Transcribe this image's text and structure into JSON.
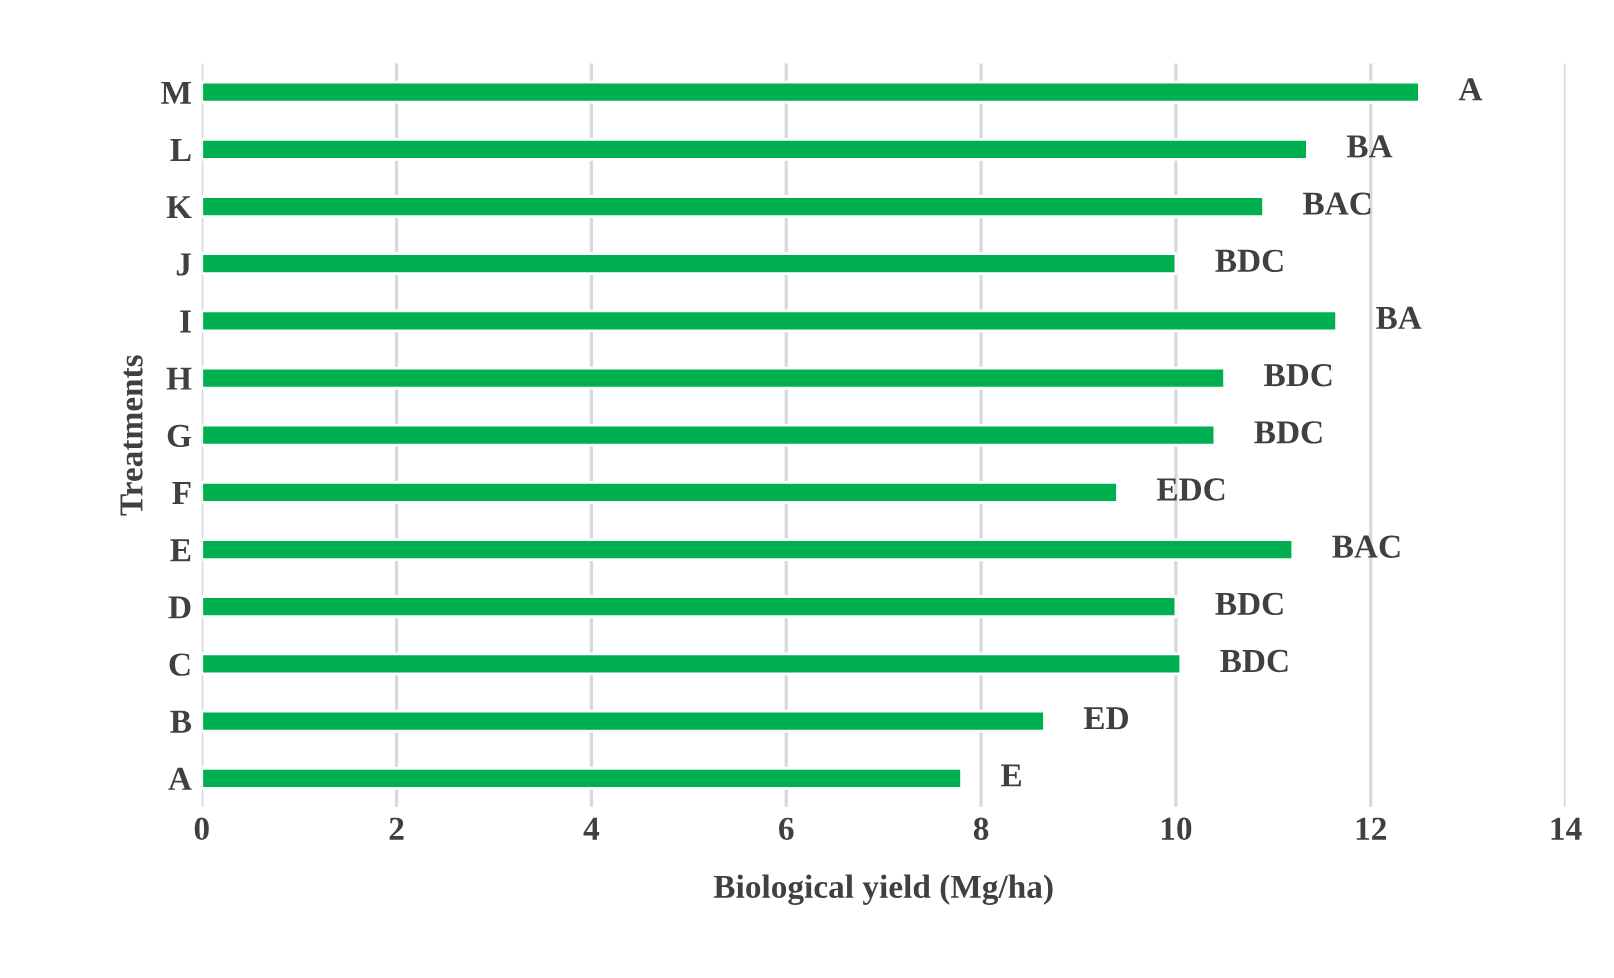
{
  "chart_data": {
    "type": "bar",
    "orientation": "horizontal",
    "xlabel": "Biological yield (Mg/ha)",
    "ylabel": "Treatments",
    "categories": [
      "M",
      "L",
      "K",
      "J",
      "I",
      "H",
      "G",
      "F",
      "E",
      "D",
      "C",
      "B",
      "A"
    ],
    "values": [
      12.5,
      11.35,
      10.9,
      10.0,
      11.65,
      10.5,
      10.4,
      9.4,
      11.2,
      10.0,
      10.05,
      8.65,
      7.8
    ],
    "value_labels": [
      "A",
      "BA",
      "BAC",
      "BDC",
      "BA",
      "BDC",
      "BDC",
      "EDC",
      "BAC",
      "BDC",
      "BDC",
      "ED",
      "E"
    ],
    "color": "#00b050",
    "xlim": [
      0,
      14
    ],
    "xticks": [
      0,
      2,
      4,
      6,
      8,
      10,
      12,
      14
    ],
    "grid": "x"
  }
}
